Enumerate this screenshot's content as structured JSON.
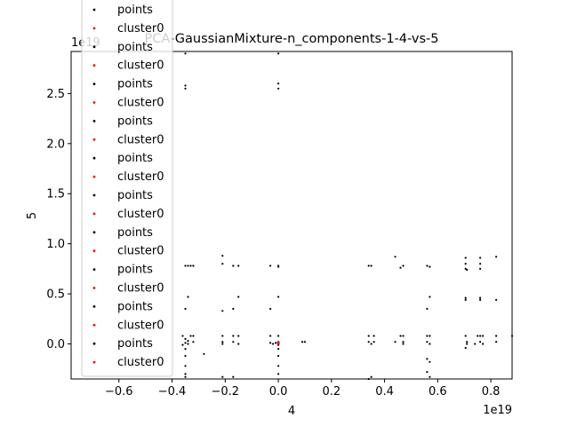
{
  "chart_data": {
    "type": "scatter",
    "title": "PCA-GaussianMixture-n_components-1-4-vs-5",
    "xlabel": "4",
    "ylabel": "5",
    "x_offset_text": "1e19",
    "y_offset_text": "1e19",
    "xlim": [
      -0.78,
      0.88
    ],
    "ylim": [
      -0.35,
      2.92
    ],
    "x_ticks": [
      -0.6,
      -0.4,
      -0.2,
      0.0,
      0.2,
      0.4,
      0.6,
      0.8
    ],
    "x_tick_labels": [
      "−0.6",
      "−0.4",
      "−0.2",
      "0.0",
      "0.2",
      "0.4",
      "0.6",
      "0.8"
    ],
    "y_ticks": [
      0.0,
      0.5,
      1.0,
      1.5,
      2.0,
      2.5
    ],
    "y_tick_labels": [
      "0.0",
      "0.5",
      "1.0",
      "1.5",
      "2.0",
      "2.5"
    ],
    "grid": false,
    "legend_placement": "upper-left",
    "legend_entries": [
      {
        "label": "points",
        "color": "#000000"
      },
      {
        "label": "cluster0",
        "color": "#ff0000"
      },
      {
        "label": "points",
        "color": "#000000"
      },
      {
        "label": "cluster0",
        "color": "#ff0000"
      },
      {
        "label": "points",
        "color": "#000000"
      },
      {
        "label": "cluster0",
        "color": "#ff0000"
      },
      {
        "label": "points",
        "color": "#000000"
      },
      {
        "label": "cluster0",
        "color": "#ff0000"
      },
      {
        "label": "points",
        "color": "#000000"
      },
      {
        "label": "cluster0",
        "color": "#ff0000"
      },
      {
        "label": "points",
        "color": "#000000"
      },
      {
        "label": "cluster0",
        "color": "#ff0000"
      },
      {
        "label": "points",
        "color": "#000000"
      },
      {
        "label": "cluster0",
        "color": "#ff0000"
      },
      {
        "label": "points",
        "color": "#000000"
      },
      {
        "label": "cluster0",
        "color": "#ff0000"
      },
      {
        "label": "points",
        "color": "#000000"
      },
      {
        "label": "cluster0",
        "color": "#ff0000"
      },
      {
        "label": "points",
        "color": "#000000"
      },
      {
        "label": "cluster0",
        "color": "#ff0000"
      }
    ],
    "series": [
      {
        "name": "points",
        "color": "#000000",
        "points": [
          [
            -0.35,
            2.9
          ],
          [
            -0.35,
            2.58
          ],
          [
            -0.35,
            2.55
          ],
          [
            0.0,
            2.9
          ],
          [
            0.0,
            2.6
          ],
          [
            0.0,
            2.55
          ],
          [
            -0.21,
            0.88
          ],
          [
            -0.21,
            0.8
          ],
          [
            -0.35,
            0.78
          ],
          [
            -0.34,
            0.78
          ],
          [
            -0.33,
            0.78
          ],
          [
            -0.32,
            0.78
          ],
          [
            -0.17,
            0.78
          ],
          [
            -0.15,
            0.78
          ],
          [
            -0.03,
            0.78
          ],
          [
            0.0,
            0.78
          ],
          [
            0.0,
            0.77
          ],
          [
            0.34,
            0.78
          ],
          [
            0.35,
            0.78
          ],
          [
            0.44,
            0.87
          ],
          [
            0.47,
            0.78
          ],
          [
            0.46,
            0.76
          ],
          [
            0.56,
            0.78
          ],
          [
            0.57,
            0.77
          ],
          [
            0.705,
            0.86
          ],
          [
            0.705,
            0.8
          ],
          [
            0.705,
            0.75
          ],
          [
            0.71,
            0.74
          ],
          [
            0.76,
            0.86
          ],
          [
            0.76,
            0.8
          ],
          [
            0.76,
            0.75
          ],
          [
            0.82,
            0.87
          ],
          [
            -0.34,
            0.47
          ],
          [
            -0.35,
            0.35
          ],
          [
            -0.21,
            0.33
          ],
          [
            -0.17,
            0.35
          ],
          [
            -0.15,
            0.47
          ],
          [
            -0.03,
            0.35
          ],
          [
            0.0,
            0.47
          ],
          [
            0.56,
            0.35
          ],
          [
            0.57,
            0.47
          ],
          [
            0.705,
            0.46
          ],
          [
            0.705,
            0.44
          ],
          [
            0.76,
            0.46
          ],
          [
            0.76,
            0.44
          ],
          [
            0.82,
            0.44
          ],
          [
            -0.36,
            0.08
          ],
          [
            -0.35,
            0.05
          ],
          [
            -0.34,
            0.03
          ],
          [
            -0.35,
            0.01
          ],
          [
            -0.34,
            0.0
          ],
          [
            -0.36,
            -0.01
          ],
          [
            -0.33,
            0.08
          ],
          [
            -0.32,
            0.02
          ],
          [
            -0.32,
            0.08
          ],
          [
            -0.21,
            0.08
          ],
          [
            -0.21,
            0.02
          ],
          [
            -0.21,
            0.0
          ],
          [
            -0.17,
            0.08
          ],
          [
            -0.17,
            0.02
          ],
          [
            -0.15,
            0.08
          ],
          [
            -0.15,
            0.0
          ],
          [
            -0.03,
            0.08
          ],
          [
            -0.03,
            0.01
          ],
          [
            -0.02,
            0.0
          ],
          [
            -0.01,
            0.01
          ],
          [
            0.0,
            0.08
          ],
          [
            0.0,
            0.02
          ],
          [
            0.0,
            -0.01
          ],
          [
            0.0,
            -0.05
          ],
          [
            0.09,
            0.02
          ],
          [
            0.1,
            0.02
          ],
          [
            0.34,
            0.08
          ],
          [
            0.34,
            0.02
          ],
          [
            0.35,
            0.0
          ],
          [
            0.36,
            0.02
          ],
          [
            0.36,
            0.08
          ],
          [
            0.44,
            0.02
          ],
          [
            0.46,
            0.08
          ],
          [
            0.47,
            0.08
          ],
          [
            0.47,
            0.02
          ],
          [
            0.47,
            0.0
          ],
          [
            0.56,
            0.08
          ],
          [
            0.56,
            0.02
          ],
          [
            0.57,
            0.0
          ],
          [
            0.57,
            0.08
          ],
          [
            0.705,
            0.08
          ],
          [
            0.71,
            0.02
          ],
          [
            0.71,
            0.0
          ],
          [
            0.705,
            -0.04
          ],
          [
            0.74,
            0.0
          ],
          [
            0.75,
            0.08
          ],
          [
            0.76,
            0.08
          ],
          [
            0.76,
            0.02
          ],
          [
            0.77,
            0.08
          ],
          [
            0.77,
            0.0
          ],
          [
            0.82,
            0.08
          ],
          [
            0.82,
            0.02
          ],
          [
            0.88,
            0.08
          ],
          [
            -0.35,
            -0.05
          ],
          [
            -0.35,
            -0.12
          ],
          [
            -0.28,
            -0.1
          ],
          [
            -0.35,
            -0.22
          ],
          [
            -0.35,
            -0.3
          ],
          [
            -0.35,
            -0.33
          ],
          [
            -0.21,
            -0.33
          ],
          [
            -0.17,
            -0.33
          ],
          [
            0.0,
            -0.12
          ],
          [
            0.0,
            -0.22
          ],
          [
            0.0,
            -0.3
          ],
          [
            0.35,
            -0.33
          ],
          [
            0.34,
            -0.35
          ],
          [
            0.56,
            -0.15
          ],
          [
            0.57,
            -0.18
          ],
          [
            0.56,
            -0.28
          ],
          [
            0.57,
            -0.33
          ]
        ]
      },
      {
        "name": "cluster0",
        "color": "#ff0000",
        "points": [
          [
            0.0,
            0.01
          ]
        ]
      }
    ]
  }
}
